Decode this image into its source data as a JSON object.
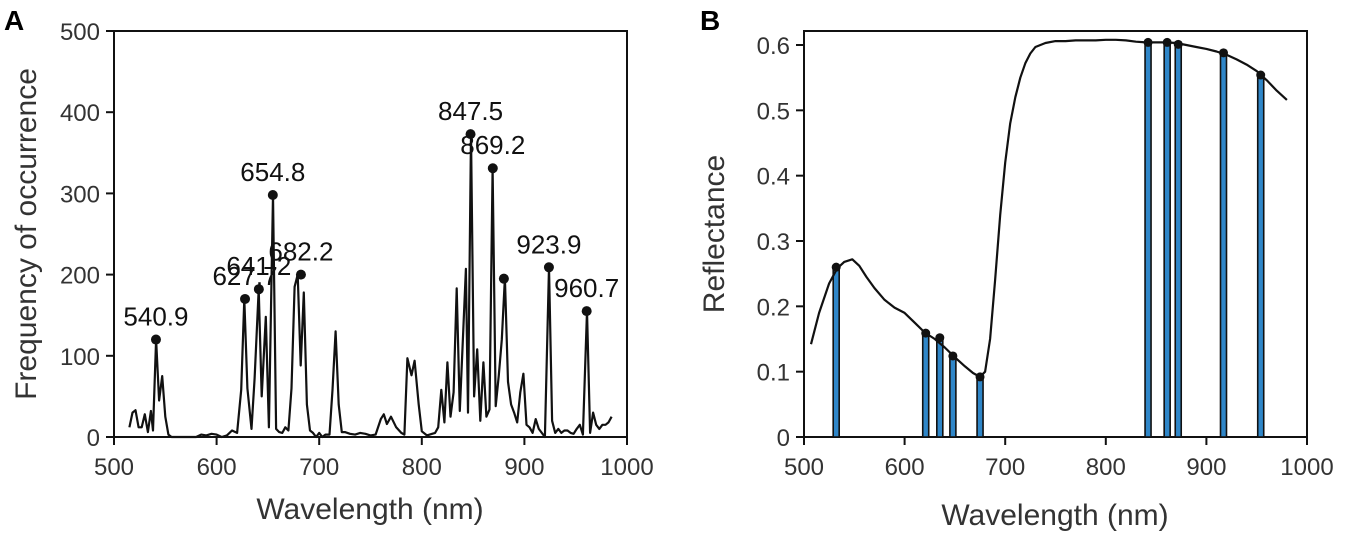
{
  "chart_data": [
    {
      "panel": "A",
      "type": "line",
      "xlabel": "Wavelength (nm)",
      "ylabel": "Frequency of occurrence",
      "xlim": [
        500,
        1000
      ],
      "ylim": [
        0,
        500
      ],
      "xticks": [
        "500",
        "600",
        "700",
        "800",
        "900",
        "1000"
      ],
      "yticks": [
        "0",
        "100",
        "200",
        "300",
        "400",
        "500"
      ],
      "line_color": "#111111",
      "series": [
        {
          "name": "frequency",
          "x": [
            515,
            518,
            521,
            524,
            527,
            530,
            533,
            536,
            538,
            541,
            544,
            547,
            550,
            553,
            556,
            560,
            565,
            570,
            575,
            580,
            585,
            590,
            595,
            600,
            605,
            610,
            615,
            620,
            624,
            627,
            630,
            634,
            637,
            641,
            644,
            648,
            651,
            655,
            658,
            661,
            664,
            667,
            670,
            673,
            676,
            679,
            682,
            685,
            688,
            691,
            694,
            697,
            700,
            703,
            706,
            710,
            713,
            716,
            719,
            722,
            725,
            730,
            735,
            740,
            745,
            750,
            755,
            760,
            763,
            766,
            770,
            775,
            780,
            783,
            786,
            790,
            793,
            797,
            800,
            805,
            810,
            813,
            816,
            819,
            822,
            825,
            828,
            831,
            834,
            837,
            840,
            843,
            845,
            848,
            851,
            854,
            857,
            860,
            863,
            866,
            869,
            872,
            875,
            878,
            881,
            884,
            887,
            890,
            893,
            896,
            899,
            902,
            905,
            908,
            911,
            914,
            917,
            920,
            924,
            927,
            930,
            933,
            936,
            939,
            942,
            945,
            948,
            951,
            954,
            957,
            961,
            964,
            967,
            970,
            973,
            976,
            979,
            982,
            985
          ],
          "y": [
            12,
            30,
            33,
            12,
            12,
            28,
            6,
            32,
            8,
            120,
            45,
            75,
            25,
            3,
            0,
            0,
            0,
            0,
            0,
            0,
            3,
            2,
            4,
            3,
            0,
            2,
            8,
            5,
            58,
            170,
            60,
            10,
            72,
            182,
            50,
            148,
            12,
            298,
            10,
            6,
            5,
            12,
            8,
            60,
            185,
            200,
            88,
            178,
            40,
            8,
            5,
            0,
            5,
            0,
            3,
            3,
            58,
            130,
            40,
            6,
            6,
            4,
            3,
            5,
            4,
            2,
            3,
            22,
            28,
            16,
            25,
            12,
            5,
            3,
            97,
            76,
            94,
            40,
            7,
            2,
            4,
            5,
            12,
            58,
            18,
            92,
            25,
            55,
            183,
            32,
            118,
            207,
            30,
            373,
            50,
            108,
            20,
            92,
            25,
            34,
            331,
            38,
            76,
            120,
            196,
            68,
            40,
            30,
            18,
            55,
            78,
            15,
            12,
            5,
            22,
            10,
            5,
            0,
            209,
            20,
            5,
            10,
            5,
            8,
            8,
            5,
            4,
            10,
            15,
            3,
            155,
            5,
            30,
            15,
            10,
            15,
            15,
            18,
            25
          ]
        }
      ],
      "peaks": [
        {
          "x": 540.9,
          "y": 120,
          "label": "540.9"
        },
        {
          "x": 627.7,
          "y": 170,
          "label": "627.7"
        },
        {
          "x": 641.2,
          "y": 182,
          "label": "641.2"
        },
        {
          "x": 654.8,
          "y": 298,
          "label": "654.8"
        },
        {
          "x": 682.2,
          "y": 200,
          "label": "682.2"
        },
        {
          "x": 847.5,
          "y": 373,
          "label": "847.5"
        },
        {
          "x": 869.2,
          "y": 331,
          "label": "869.2"
        },
        {
          "x": 880.0,
          "y": 195,
          "label": ""
        },
        {
          "x": 923.9,
          "y": 209,
          "label": "923.9"
        },
        {
          "x": 960.7,
          "y": 155,
          "label": "960.7"
        }
      ]
    },
    {
      "panel": "B",
      "type": "line",
      "xlabel": "Wavelength (nm)",
      "ylabel": "Reflectance",
      "xlim": [
        500,
        1000
      ],
      "ylim": [
        0,
        0.6
      ],
      "xticks": [
        "500",
        "600",
        "700",
        "800",
        "900",
        "1000"
      ],
      "yticks": [
        "0",
        "0.1",
        "0.2",
        "0.3",
        "0.4",
        "0.5",
        "0.6"
      ],
      "line_color": "#111111",
      "band_fill": "#2f86c8",
      "series": [
        {
          "name": "reflectance",
          "x": [
            507,
            515,
            525,
            533,
            540,
            548,
            555,
            562,
            570,
            580,
            590,
            600,
            610,
            620,
            630,
            640,
            650,
            660,
            668,
            675,
            680,
            685,
            690,
            695,
            700,
            705,
            710,
            715,
            720,
            725,
            730,
            740,
            750,
            760,
            770,
            780,
            790,
            800,
            810,
            820,
            830,
            840,
            850,
            860,
            870,
            880,
            890,
            900,
            910,
            920,
            930,
            940,
            950,
            960,
            970,
            980
          ],
          "y": [
            0.142,
            0.19,
            0.235,
            0.258,
            0.268,
            0.272,
            0.262,
            0.245,
            0.228,
            0.21,
            0.198,
            0.19,
            0.175,
            0.16,
            0.15,
            0.137,
            0.122,
            0.108,
            0.098,
            0.092,
            0.1,
            0.15,
            0.24,
            0.34,
            0.42,
            0.48,
            0.52,
            0.55,
            0.572,
            0.587,
            0.597,
            0.603,
            0.606,
            0.606,
            0.607,
            0.607,
            0.607,
            0.608,
            0.608,
            0.607,
            0.605,
            0.604,
            0.604,
            0.604,
            0.603,
            0.6,
            0.597,
            0.594,
            0.59,
            0.585,
            0.578,
            0.57,
            0.56,
            0.546,
            0.53,
            0.516
          ]
        }
      ],
      "bands": [
        {
          "x": 532,
          "value": 0.26
        },
        {
          "x": 621,
          "value": 0.159
        },
        {
          "x": 635,
          "value": 0.152
        },
        {
          "x": 648,
          "value": 0.124
        },
        {
          "x": 675,
          "value": 0.092
        },
        {
          "x": 842,
          "value": 0.604
        },
        {
          "x": 861,
          "value": 0.604
        },
        {
          "x": 872,
          "value": 0.601
        },
        {
          "x": 917,
          "value": 0.588
        },
        {
          "x": 954,
          "value": 0.554
        }
      ]
    }
  ]
}
